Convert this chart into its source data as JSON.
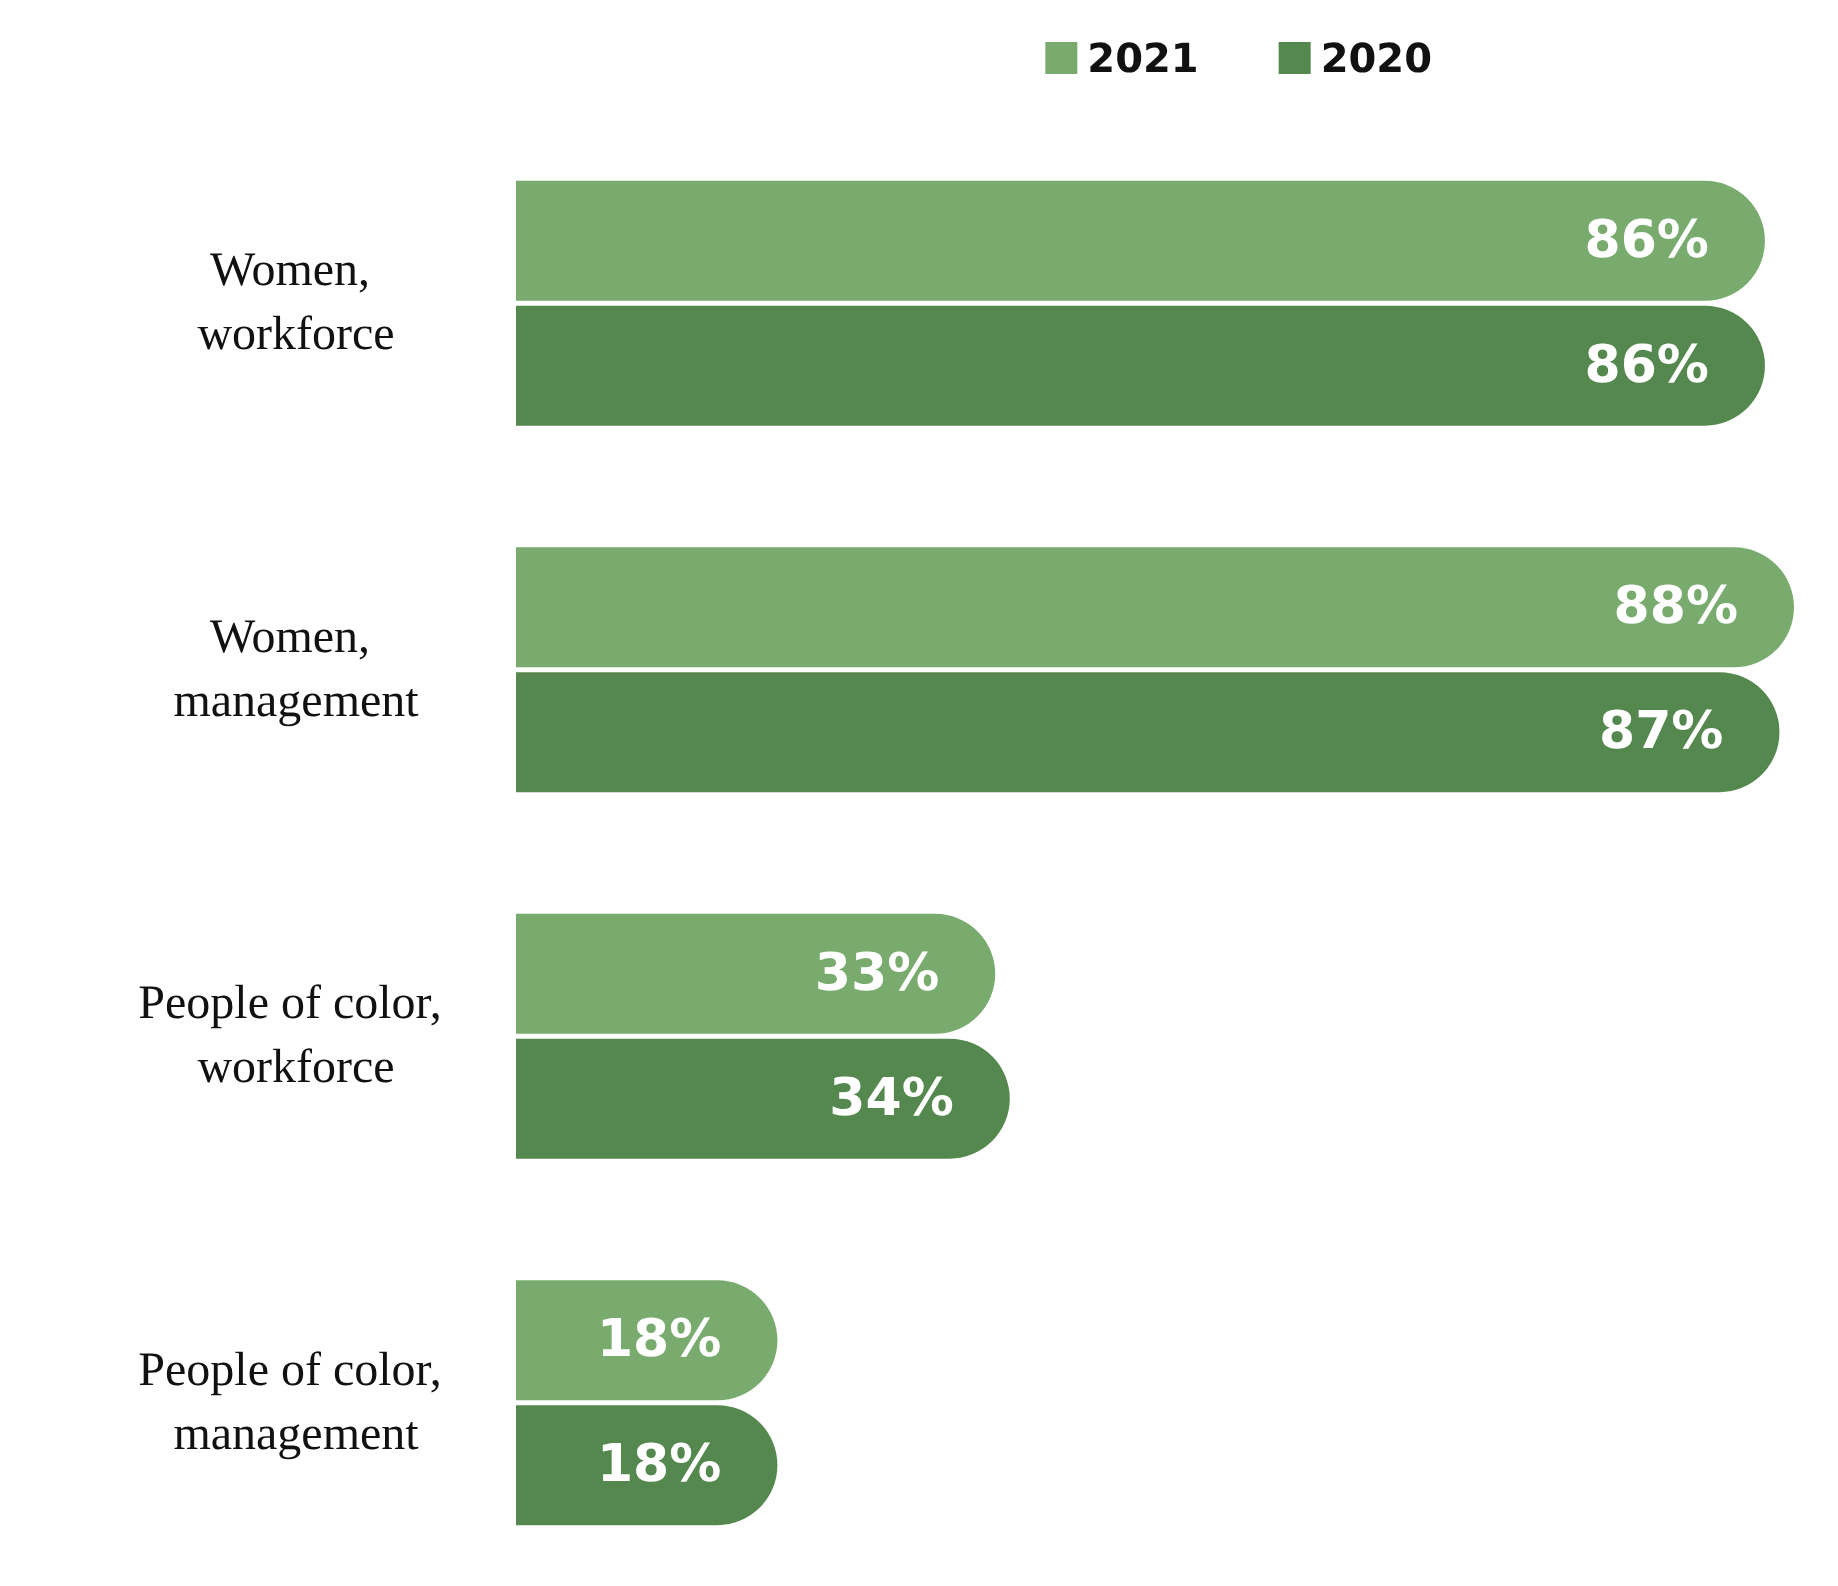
{
  "chart_data": {
    "type": "bar",
    "orientation": "horizontal",
    "legend": "top right",
    "categories": [
      "Women, workforce",
      "Women, management",
      "People of color, workforce",
      "People of color, management"
    ],
    "series": [
      {
        "name": "2021",
        "color": "#7aab6e",
        "values": [
          86,
          88,
          33,
          18
        ],
        "value_labels": [
          "86%",
          "88%",
          "33%",
          "18%"
        ]
      },
      {
        "name": "2020",
        "color": "#55884e",
        "values": [
          86,
          87,
          34,
          18
        ],
        "value_labels": [
          "86%",
          "87%",
          "34%",
          "18%"
        ]
      }
    ]
  }
}
